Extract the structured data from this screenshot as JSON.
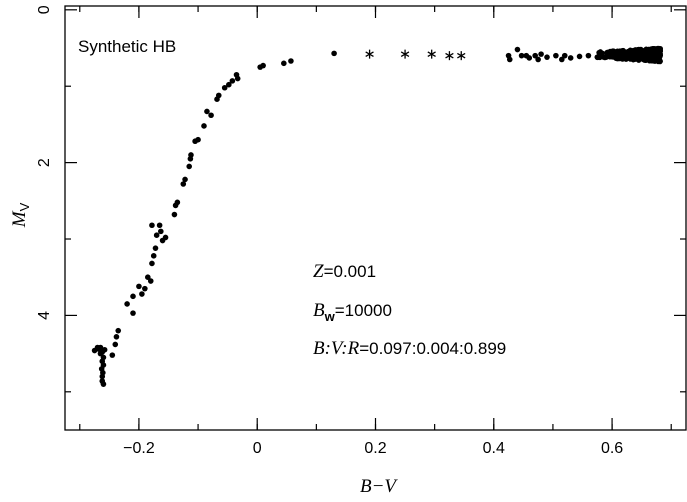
{
  "chart_data": {
    "type": "scatter",
    "title": "Synthetic HB",
    "xlabel": "B−V",
    "ylabel": "M",
    "ylabel_sub": "V",
    "xlim": [
      -0.325,
      0.725
    ],
    "ylim": [
      5.5,
      -0.05
    ],
    "y_inverted": true,
    "grid": false,
    "x_ticks": [
      -0.2,
      0,
      0.2,
      0.4,
      0.6
    ],
    "x_tick_labels": [
      "−0.2",
      "0",
      "0.2",
      "0.4",
      "0.6"
    ],
    "y_ticks": [
      0,
      2,
      4
    ],
    "y_tick_labels": [
      "0",
      "2",
      "4"
    ],
    "annotations": {
      "z_sym": "Z",
      "z_val": "=0.001",
      "bw_sym": "B",
      "bw_sub": "w",
      "bw_val": "=10000",
      "ratio_sym": "B:V:R",
      "ratio_val": "=0.097:0.004:0.899"
    },
    "series": [
      {
        "marker": "dot",
        "points": [
          [
            -0.27,
            4.42
          ],
          [
            -0.275,
            4.46
          ],
          [
            -0.268,
            4.44
          ],
          [
            -0.265,
            4.5
          ],
          [
            -0.262,
            4.48
          ],
          [
            -0.26,
            4.55
          ],
          [
            -0.262,
            4.6
          ],
          [
            -0.26,
            4.65
          ],
          [
            -0.263,
            4.7
          ],
          [
            -0.261,
            4.75
          ],
          [
            -0.262,
            4.8
          ],
          [
            -0.262,
            4.86
          ],
          [
            -0.26,
            4.9
          ],
          [
            -0.265,
            4.42
          ],
          [
            -0.258,
            4.45
          ],
          [
            -0.245,
            4.52
          ],
          [
            -0.24,
            4.38
          ],
          [
            -0.238,
            4.28
          ],
          [
            -0.235,
            4.2
          ],
          [
            -0.22,
            3.85
          ],
          [
            -0.21,
            3.75
          ],
          [
            -0.21,
            3.97
          ],
          [
            -0.2,
            3.62
          ],
          [
            -0.195,
            3.72
          ],
          [
            -0.19,
            3.65
          ],
          [
            -0.185,
            3.5
          ],
          [
            -0.18,
            3.55
          ],
          [
            -0.178,
            3.32
          ],
          [
            -0.175,
            3.22
          ],
          [
            -0.172,
            3.12
          ],
          [
            -0.17,
            2.95
          ],
          [
            -0.178,
            2.82
          ],
          [
            -0.165,
            2.82
          ],
          [
            -0.163,
            2.9
          ],
          [
            -0.16,
            3.02
          ],
          [
            -0.155,
            2.98
          ],
          [
            -0.14,
            2.68
          ],
          [
            -0.138,
            2.56
          ],
          [
            -0.135,
            2.52
          ],
          [
            -0.125,
            2.28
          ],
          [
            -0.122,
            2.22
          ],
          [
            -0.115,
            2.05
          ],
          [
            -0.113,
            1.95
          ],
          [
            -0.112,
            1.9
          ],
          [
            -0.105,
            1.72
          ],
          [
            -0.1,
            1.7
          ],
          [
            -0.09,
            1.52
          ],
          [
            -0.085,
            1.33
          ],
          [
            -0.078,
            1.38
          ],
          [
            -0.068,
            1.17
          ],
          [
            -0.065,
            1.12
          ],
          [
            -0.055,
            1.02
          ],
          [
            -0.048,
            0.98
          ],
          [
            -0.042,
            0.93
          ],
          [
            -0.035,
            0.85
          ],
          [
            -0.033,
            0.9
          ],
          [
            0.005,
            0.75
          ],
          [
            0.01,
            0.73
          ],
          [
            0.045,
            0.7
          ],
          [
            0.057,
            0.67
          ],
          [
            0.13,
            0.57
          ],
          [
            0.425,
            0.6
          ],
          [
            0.427,
            0.65
          ],
          [
            0.44,
            0.52
          ],
          [
            0.447,
            0.6
          ],
          [
            0.455,
            0.6
          ],
          [
            0.46,
            0.63
          ],
          [
            0.47,
            0.6
          ],
          [
            0.475,
            0.65
          ],
          [
            0.48,
            0.58
          ],
          [
            0.49,
            0.62
          ],
          [
            0.505,
            0.6
          ],
          [
            0.515,
            0.65
          ],
          [
            0.52,
            0.6
          ],
          [
            0.53,
            0.63
          ],
          [
            0.545,
            0.61
          ],
          [
            0.56,
            0.6
          ],
          [
            0.575,
            0.62
          ]
        ]
      },
      {
        "marker": "asterisk",
        "points": [
          [
            0.19,
            0.58
          ],
          [
            0.25,
            0.58
          ],
          [
            0.295,
            0.58
          ],
          [
            0.325,
            0.6
          ],
          [
            0.345,
            0.6
          ]
        ]
      }
    ],
    "dense_cluster": {
      "x": [
        0.575,
        0.682
      ],
      "y": [
        0.47,
        0.67
      ],
      "count": 380
    }
  }
}
